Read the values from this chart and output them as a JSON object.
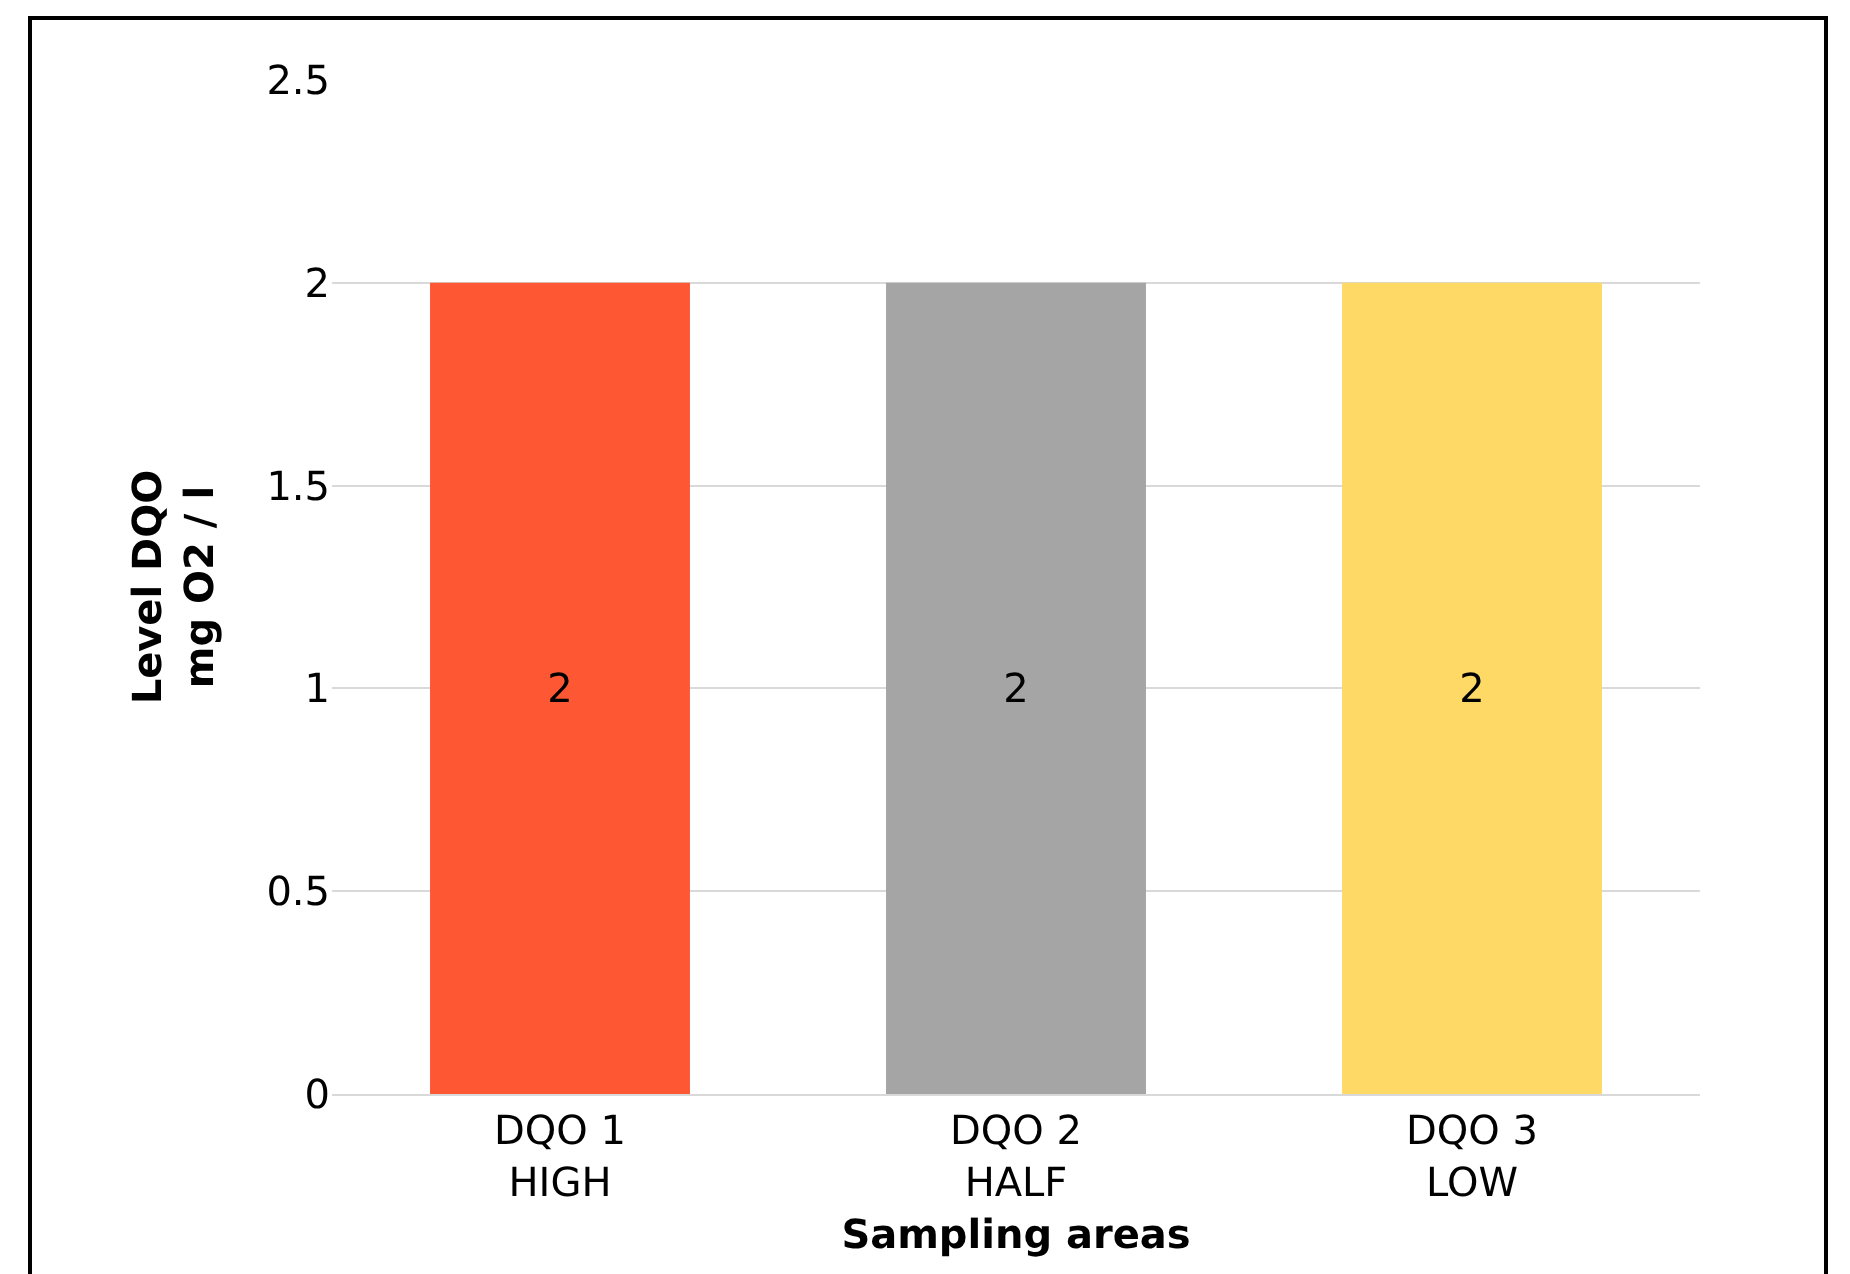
{
  "chart_data": {
    "type": "bar",
    "xlabel": "Sampling areas",
    "ylabel": "Level DQO\nmg O2 / l",
    "categories": [
      "DQO 1\nHIGH",
      "DQO 2\nHALF",
      "DQO 3\nLOW"
    ],
    "values": [
      2,
      2,
      2
    ],
    "colors": [
      "#fe5733",
      "#a5a5a5",
      "#fed966"
    ],
    "ylim": [
      0,
      2.5
    ],
    "yticks": [
      0,
      0.5,
      1,
      1.5,
      2,
      2.5
    ],
    "grid": "y",
    "data_labels": true,
    "legend": false
  }
}
